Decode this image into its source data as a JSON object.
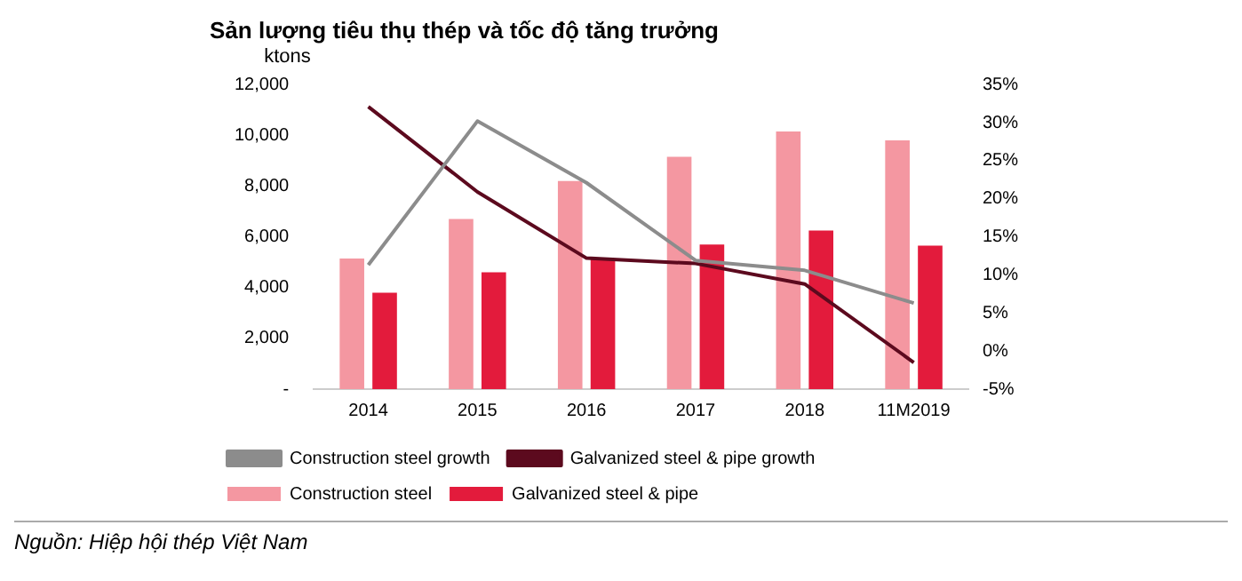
{
  "chart_data": {
    "type": "bar",
    "title": "Sản lượng tiêu thụ thép và tốc độ tăng trưởng",
    "ylabel": "ktons",
    "categories": [
      "2014",
      "2015",
      "2016",
      "2017",
      "2018",
      "11M2019"
    ],
    "series": [
      {
        "name": "Construction steel",
        "color": "#f497a1",
        "values": [
          5150,
          6700,
          8200,
          9150,
          10150,
          9800
        ]
      },
      {
        "name": "Galvanized steel & pipe",
        "color": "#e31b3c",
        "values": [
          3800,
          4600,
          5150,
          5700,
          6250,
          5650
        ]
      },
      {
        "name": "Construction steel growth",
        "type": "line",
        "axis": "y2",
        "color": "#8c8c8c",
        "values": [
          11.3,
          30.2,
          22.1,
          11.9,
          10.6,
          6.3
        ]
      },
      {
        "name": "Galvanized steel & pipe growth",
        "type": "line",
        "axis": "y2",
        "color": "#5c0a1e",
        "values": [
          32.1,
          20.9,
          12.2,
          11.5,
          8.8,
          -1.5
        ]
      }
    ],
    "ylim": [
      0,
      12000
    ],
    "yticks": [
      {
        "value": 0,
        "label": "-"
      },
      {
        "value": 2000,
        "label": "2,000"
      },
      {
        "value": 4000,
        "label": "4,000"
      },
      {
        "value": 6000,
        "label": "6,000"
      },
      {
        "value": 8000,
        "label": "8,000"
      },
      {
        "value": 10000,
        "label": "10,000"
      },
      {
        "value": 12000,
        "label": "12,000"
      }
    ],
    "y2lim": [
      -5,
      35
    ],
    "y2ticks": [
      {
        "value": -5,
        "label": "-5%"
      },
      {
        "value": 0,
        "label": "0%"
      },
      {
        "value": 5,
        "label": "5%"
      },
      {
        "value": 10,
        "label": "10%"
      },
      {
        "value": 15,
        "label": "15%"
      },
      {
        "value": 20,
        "label": "20%"
      },
      {
        "value": 25,
        "label": "25%"
      },
      {
        "value": 30,
        "label": "30%"
      },
      {
        "value": 35,
        "label": "35%"
      }
    ],
    "grid": false,
    "legend": "bottom",
    "marker": "none",
    "line_style": "solid",
    "annotations": [
      "Nguồn: Hiệp hội thép Việt Nam"
    ]
  }
}
